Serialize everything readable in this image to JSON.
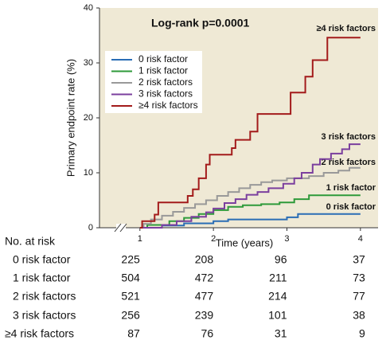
{
  "chart_data": {
    "type": "step",
    "annotation": "Log-rank p=0.0001",
    "xlabel": "Time (years)",
    "ylabel": "Primary endpoint rate (%)",
    "xlim": [
      0.45,
      4.24
    ],
    "xticks": [
      1,
      2,
      3,
      4
    ],
    "ylim": [
      0,
      40
    ],
    "yticks": [
      0,
      10,
      20,
      30,
      40
    ],
    "legend": "upper left",
    "series": [
      {
        "name": "0 risk factor",
        "color": "#2a6db5",
        "x": [
          1,
          1.3,
          1.6,
          2.0,
          2.2,
          3.0,
          3.15,
          4.0
        ],
        "values": [
          0,
          0.4,
          0.8,
          1.2,
          1.5,
          1.9,
          2.5,
          2.5
        ]
      },
      {
        "name": "1 risk factor",
        "color": "#2e9a3a",
        "x": [
          1,
          1.1,
          1.4,
          1.6,
          1.8,
          2.0,
          2.2,
          2.4,
          2.65,
          2.9,
          3.1,
          3.3,
          4.0
        ],
        "values": [
          0,
          0.5,
          1.2,
          1.8,
          2.5,
          3.2,
          3.8,
          4.1,
          4.3,
          4.6,
          5.2,
          5.9,
          5.9
        ]
      },
      {
        "name": "2 risk factors",
        "color": "#999999",
        "x": [
          1,
          1.05,
          1.15,
          1.3,
          1.45,
          1.6,
          1.75,
          1.9,
          2.05,
          2.2,
          2.35,
          2.5,
          2.65,
          2.8,
          3.0,
          3.3,
          3.5,
          3.7,
          3.85,
          4.0
        ],
        "values": [
          0,
          0.7,
          1.5,
          2.2,
          2.9,
          3.6,
          4.3,
          5.0,
          5.8,
          6.5,
          7.2,
          7.8,
          8.3,
          8.6,
          9.0,
          9.4,
          10.0,
          10.4,
          10.9,
          10.9
        ]
      },
      {
        "name": "3 risk factors",
        "color": "#7b3f9e",
        "x": [
          1,
          1.3,
          1.5,
          1.7,
          1.9,
          2.0,
          2.15,
          2.3,
          2.45,
          2.6,
          2.75,
          2.95,
          3.1,
          3.2,
          3.35,
          3.45,
          3.6,
          3.75,
          3.85,
          4.0
        ],
        "values": [
          0,
          0.5,
          1.2,
          2.0,
          2.8,
          3.5,
          4.5,
          5.2,
          6.0,
          6.5,
          7.2,
          8.0,
          9.0,
          10.0,
          11.5,
          12.5,
          13.5,
          14.3,
          15.2,
          15.2
        ]
      },
      {
        "name": "≥4 risk factors",
        "color": "#a31b1b",
        "x": [
          1,
          1.03,
          1.2,
          1.25,
          1.65,
          1.72,
          1.8,
          1.9,
          1.95,
          2.25,
          2.3,
          2.5,
          2.6,
          3.05,
          3.25,
          3.35,
          3.55,
          4.0
        ],
        "values": [
          0,
          1.2,
          2.4,
          4.6,
          5.8,
          7.0,
          9.0,
          11.5,
          13.3,
          14.5,
          16.0,
          17.5,
          20.7,
          24.6,
          27.5,
          30.5,
          34.6,
          34.6
        ]
      }
    ],
    "risk_table": {
      "title": "No. at risk",
      "counts": [
        [
          225,
          208,
          96,
          37
        ],
        [
          504,
          472,
          211,
          73
        ],
        [
          521,
          477,
          214,
          77
        ],
        [
          256,
          239,
          101,
          38
        ],
        [
          87,
          76,
          31,
          9
        ]
      ]
    }
  }
}
